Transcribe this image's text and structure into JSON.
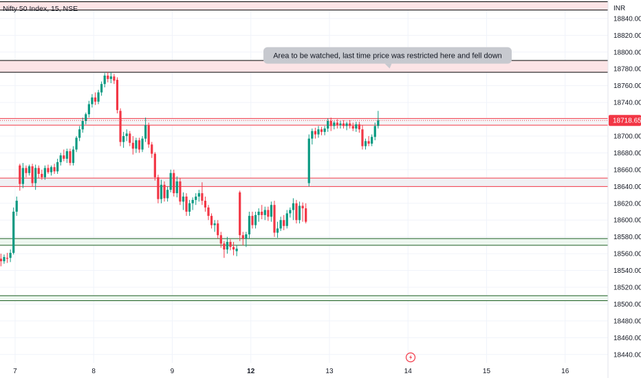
{
  "header": {
    "symbol_text": "Nifty 50 Index, 15, NSE"
  },
  "chart_data": {
    "type": "candlestick",
    "title": "Nifty 50 Index, 15, NSE",
    "currency": "INR",
    "ylim": [
      18430,
      18862
    ],
    "y_ticks": [
      18440,
      18460,
      18480,
      18500,
      18520,
      18540,
      18560,
      18580,
      18600,
      18620,
      18640,
      18660,
      18680,
      18700,
      18720,
      18740,
      18760,
      18780,
      18800,
      18820,
      18840
    ],
    "x_ticks": [
      {
        "label": "7",
        "bar": 4.5,
        "bold": false
      },
      {
        "label": "8",
        "bar": 29.5,
        "bold": false
      },
      {
        "label": "9",
        "bar": 54.5,
        "bold": false
      },
      {
        "label": "12",
        "bar": 79.5,
        "bold": true
      },
      {
        "label": "13",
        "bar": 104.5,
        "bold": false
      },
      {
        "label": "14",
        "bar": 129.5,
        "bold": false
      },
      {
        "label": "15",
        "bar": 154.5,
        "bold": false
      },
      {
        "label": "16",
        "bar": 179.5,
        "bold": false
      }
    ],
    "current_price": "18718.65",
    "current_price_value": 18718.65,
    "colors": {
      "up": "#089981",
      "down": "#f23645",
      "last_price": "#f23645",
      "grid": "#f0f3fa"
    },
    "zones": [
      {
        "from": 18850,
        "to": 18860,
        "fill": "#fce4e6",
        "border": "#000000"
      },
      {
        "from": 18776,
        "to": 18790,
        "fill": "#fce4e6",
        "border": "#000000"
      },
      {
        "from": 18713,
        "to": 18721,
        "fill": "#f5f5f7",
        "border": "#f23645"
      },
      {
        "from": 18640,
        "to": 18650,
        "fill": "#f0f0f3",
        "border": "#f23645"
      },
      {
        "from": 18570,
        "to": 18578,
        "fill": "#edf7ef",
        "border": "#1b5e20"
      },
      {
        "from": 18504,
        "to": 18510,
        "fill": "#edf7ef",
        "border": "#1b5e20"
      }
    ],
    "annotations": [
      {
        "text": "Area to be watched, last time price was restricted here and fell down",
        "bar": 123,
        "price": 18796
      }
    ],
    "candles": [
      {
        "o": 18554,
        "h": 18560,
        "l": 18545,
        "c": 18551
      },
      {
        "o": 18551,
        "h": 18559,
        "l": 18548,
        "c": 18556
      },
      {
        "o": 18555,
        "h": 18561,
        "l": 18549,
        "c": 18554
      },
      {
        "o": 18555,
        "h": 18565,
        "l": 18550,
        "c": 18561
      },
      {
        "o": 18561,
        "h": 18615,
        "l": 18559,
        "c": 18610
      },
      {
        "o": 18610,
        "h": 18628,
        "l": 18605,
        "c": 18623
      },
      {
        "o": 18665,
        "h": 18667,
        "l": 18635,
        "c": 18643
      },
      {
        "o": 18643,
        "h": 18668,
        "l": 18638,
        "c": 18662
      },
      {
        "o": 18662,
        "h": 18665,
        "l": 18651,
        "c": 18656
      },
      {
        "o": 18656,
        "h": 18666,
        "l": 18653,
        "c": 18664
      },
      {
        "o": 18664,
        "h": 18667,
        "l": 18640,
        "c": 18644
      },
      {
        "o": 18644,
        "h": 18666,
        "l": 18636,
        "c": 18662
      },
      {
        "o": 18662,
        "h": 18665,
        "l": 18650,
        "c": 18655
      },
      {
        "o": 18655,
        "h": 18660,
        "l": 18648,
        "c": 18651
      },
      {
        "o": 18651,
        "h": 18665,
        "l": 18648,
        "c": 18662
      },
      {
        "o": 18662,
        "h": 18666,
        "l": 18655,
        "c": 18657
      },
      {
        "o": 18657,
        "h": 18665,
        "l": 18653,
        "c": 18663
      },
      {
        "o": 18663,
        "h": 18667,
        "l": 18655,
        "c": 18658
      },
      {
        "o": 18658,
        "h": 18673,
        "l": 18655,
        "c": 18669
      },
      {
        "o": 18669,
        "h": 18680,
        "l": 18665,
        "c": 18677
      },
      {
        "o": 18677,
        "h": 18684,
        "l": 18670,
        "c": 18673
      },
      {
        "o": 18673,
        "h": 18685,
        "l": 18668,
        "c": 18682
      },
      {
        "o": 18682,
        "h": 18685,
        "l": 18665,
        "c": 18668
      },
      {
        "o": 18668,
        "h": 18688,
        "l": 18665,
        "c": 18684
      },
      {
        "o": 18684,
        "h": 18700,
        "l": 18681,
        "c": 18698
      },
      {
        "o": 18698,
        "h": 18712,
        "l": 18694,
        "c": 18708
      },
      {
        "o": 18708,
        "h": 18722,
        "l": 18704,
        "c": 18718
      },
      {
        "o": 18718,
        "h": 18728,
        "l": 18714,
        "c": 18726
      },
      {
        "o": 18726,
        "h": 18742,
        "l": 18722,
        "c": 18738
      },
      {
        "o": 18738,
        "h": 18750,
        "l": 18734,
        "c": 18746
      },
      {
        "o": 18746,
        "h": 18752,
        "l": 18737,
        "c": 18741
      },
      {
        "o": 18741,
        "h": 18755,
        "l": 18738,
        "c": 18752
      },
      {
        "o": 18752,
        "h": 18765,
        "l": 18748,
        "c": 18762
      },
      {
        "o": 18762,
        "h": 18775,
        "l": 18758,
        "c": 18772
      },
      {
        "o": 18772,
        "h": 18776,
        "l": 18764,
        "c": 18768
      },
      {
        "o": 18768,
        "h": 18776,
        "l": 18763,
        "c": 18771
      },
      {
        "o": 18771,
        "h": 18774,
        "l": 18762,
        "c": 18766
      },
      {
        "o": 18767,
        "h": 18770,
        "l": 18727,
        "c": 18731
      },
      {
        "o": 18730,
        "h": 18733,
        "l": 18688,
        "c": 18693
      },
      {
        "o": 18693,
        "h": 18705,
        "l": 18686,
        "c": 18700
      },
      {
        "o": 18700,
        "h": 18708,
        "l": 18694,
        "c": 18703
      },
      {
        "o": 18703,
        "h": 18706,
        "l": 18688,
        "c": 18692
      },
      {
        "o": 18692,
        "h": 18700,
        "l": 18678,
        "c": 18685
      },
      {
        "o": 18685,
        "h": 18698,
        "l": 18680,
        "c": 18695
      },
      {
        "o": 18695,
        "h": 18698,
        "l": 18680,
        "c": 18684
      },
      {
        "o": 18684,
        "h": 18700,
        "l": 18681,
        "c": 18697
      },
      {
        "o": 18697,
        "h": 18722,
        "l": 18693,
        "c": 18713
      },
      {
        "o": 18713,
        "h": 18716,
        "l": 18686,
        "c": 18690
      },
      {
        "o": 18690,
        "h": 18693,
        "l": 18674,
        "c": 18679
      },
      {
        "o": 18679,
        "h": 18681,
        "l": 18647,
        "c": 18651
      },
      {
        "o": 18651,
        "h": 18654,
        "l": 18620,
        "c": 18625
      },
      {
        "o": 18625,
        "h": 18648,
        "l": 18620,
        "c": 18642
      },
      {
        "o": 18642,
        "h": 18646,
        "l": 18622,
        "c": 18626
      },
      {
        "o": 18626,
        "h": 18640,
        "l": 18622,
        "c": 18636
      },
      {
        "o": 18636,
        "h": 18660,
        "l": 18633,
        "c": 18656
      },
      {
        "o": 18656,
        "h": 18660,
        "l": 18628,
        "c": 18632
      },
      {
        "o": 18632,
        "h": 18652,
        "l": 18627,
        "c": 18646
      },
      {
        "o": 18646,
        "h": 18650,
        "l": 18618,
        "c": 18622
      },
      {
        "o": 18622,
        "h": 18633,
        "l": 18612,
        "c": 18628
      },
      {
        "o": 18628,
        "h": 18632,
        "l": 18605,
        "c": 18610
      },
      {
        "o": 18610,
        "h": 18624,
        "l": 18605,
        "c": 18620
      },
      {
        "o": 18620,
        "h": 18627,
        "l": 18612,
        "c": 18624
      },
      {
        "o": 18624,
        "h": 18632,
        "l": 18618,
        "c": 18628
      },
      {
        "o": 18628,
        "h": 18636,
        "l": 18622,
        "c": 18632
      },
      {
        "o": 18632,
        "h": 18645,
        "l": 18618,
        "c": 18623
      },
      {
        "o": 18623,
        "h": 18628,
        "l": 18610,
        "c": 18615
      },
      {
        "o": 18615,
        "h": 18618,
        "l": 18600,
        "c": 18605
      },
      {
        "o": 18605,
        "h": 18608,
        "l": 18590,
        "c": 18594
      },
      {
        "o": 18594,
        "h": 18600,
        "l": 18586,
        "c": 18596
      },
      {
        "o": 18596,
        "h": 18600,
        "l": 18578,
        "c": 18582
      },
      {
        "o": 18582,
        "h": 18586,
        "l": 18567,
        "c": 18572
      },
      {
        "o": 18572,
        "h": 18575,
        "l": 18555,
        "c": 18565
      },
      {
        "o": 18565,
        "h": 18580,
        "l": 18560,
        "c": 18574
      },
      {
        "o": 18574,
        "h": 18577,
        "l": 18564,
        "c": 18568
      },
      {
        "o": 18568,
        "h": 18574,
        "l": 18558,
        "c": 18565
      },
      {
        "o": 18563,
        "h": 18570,
        "l": 18557,
        "c": 18566
      },
      {
        "o": 18633,
        "h": 18635,
        "l": 18575,
        "c": 18582
      },
      {
        "o": 18582,
        "h": 18586,
        "l": 18570,
        "c": 18578
      },
      {
        "o": 18578,
        "h": 18586,
        "l": 18568,
        "c": 18583
      },
      {
        "o": 18583,
        "h": 18610,
        "l": 18578,
        "c": 18605
      },
      {
        "o": 18605,
        "h": 18610,
        "l": 18590,
        "c": 18594
      },
      {
        "o": 18594,
        "h": 18610,
        "l": 18590,
        "c": 18606
      },
      {
        "o": 18606,
        "h": 18614,
        "l": 18598,
        "c": 18610
      },
      {
        "o": 18610,
        "h": 18618,
        "l": 18601,
        "c": 18606
      },
      {
        "o": 18606,
        "h": 18616,
        "l": 18600,
        "c": 18612
      },
      {
        "o": 18612,
        "h": 18616,
        "l": 18599,
        "c": 18604
      },
      {
        "o": 18604,
        "h": 18622,
        "l": 18598,
        "c": 18618
      },
      {
        "o": 18618,
        "h": 18623,
        "l": 18580,
        "c": 18585
      },
      {
        "o": 18585,
        "h": 18598,
        "l": 18579,
        "c": 18590
      },
      {
        "o": 18590,
        "h": 18604,
        "l": 18587,
        "c": 18600
      },
      {
        "o": 18600,
        "h": 18606,
        "l": 18588,
        "c": 18593
      },
      {
        "o": 18593,
        "h": 18612,
        "l": 18590,
        "c": 18608
      },
      {
        "o": 18608,
        "h": 18615,
        "l": 18603,
        "c": 18612
      },
      {
        "o": 18612,
        "h": 18626,
        "l": 18600,
        "c": 18620
      },
      {
        "o": 18620,
        "h": 18624,
        "l": 18596,
        "c": 18600
      },
      {
        "o": 18600,
        "h": 18622,
        "l": 18596,
        "c": 18617
      },
      {
        "o": 18617,
        "h": 18621,
        "l": 18598,
        "c": 18614
      },
      {
        "o": 18614,
        "h": 18620,
        "l": 18596,
        "c": 18598
      },
      {
        "o": 18644,
        "h": 18702,
        "l": 18640,
        "c": 18697
      },
      {
        "o": 18697,
        "h": 18709,
        "l": 18690,
        "c": 18706
      },
      {
        "o": 18706,
        "h": 18710,
        "l": 18697,
        "c": 18702
      },
      {
        "o": 18702,
        "h": 18712,
        "l": 18698,
        "c": 18708
      },
      {
        "o": 18708,
        "h": 18711,
        "l": 18701,
        "c": 18705
      },
      {
        "o": 18705,
        "h": 18712,
        "l": 18701,
        "c": 18709
      },
      {
        "o": 18709,
        "h": 18721,
        "l": 18705,
        "c": 18718
      },
      {
        "o": 18718,
        "h": 18722,
        "l": 18706,
        "c": 18712
      },
      {
        "o": 18712,
        "h": 18718,
        "l": 18708,
        "c": 18716
      },
      {
        "o": 18716,
        "h": 18720,
        "l": 18709,
        "c": 18713
      },
      {
        "o": 18713,
        "h": 18718,
        "l": 18709,
        "c": 18715
      },
      {
        "o": 18715,
        "h": 18719,
        "l": 18709,
        "c": 18712
      },
      {
        "o": 18712,
        "h": 18717,
        "l": 18707,
        "c": 18715
      },
      {
        "o": 18715,
        "h": 18719,
        "l": 18709,
        "c": 18712
      },
      {
        "o": 18712,
        "h": 18716,
        "l": 18706,
        "c": 18709
      },
      {
        "o": 18709,
        "h": 18717,
        "l": 18705,
        "c": 18714
      },
      {
        "o": 18714,
        "h": 18717,
        "l": 18704,
        "c": 18708
      },
      {
        "o": 18708,
        "h": 18713,
        "l": 18684,
        "c": 18688
      },
      {
        "o": 18688,
        "h": 18697,
        "l": 18684,
        "c": 18694
      },
      {
        "o": 18694,
        "h": 18700,
        "l": 18688,
        "c": 18691
      },
      {
        "o": 18691,
        "h": 18702,
        "l": 18688,
        "c": 18699
      },
      {
        "o": 18699,
        "h": 18716,
        "l": 18695,
        "c": 18712
      },
      {
        "o": 18712,
        "h": 18730,
        "l": 18709,
        "c": 18719
      }
    ]
  }
}
